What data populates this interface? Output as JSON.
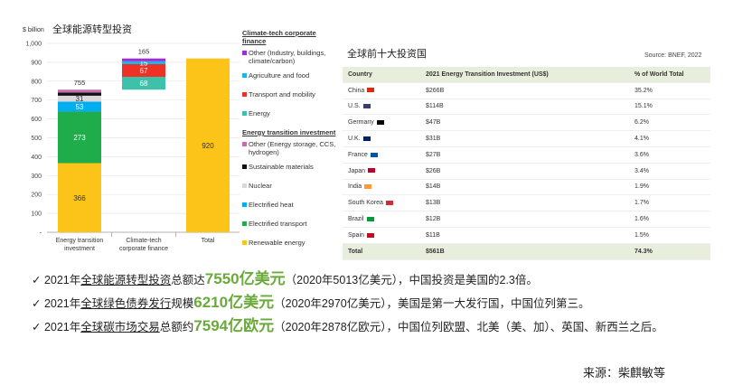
{
  "chart_data": {
    "type": "bar",
    "title": "全球能源转型投资",
    "ylabel": "$ billion",
    "ylim": [
      0,
      1000
    ],
    "yticks": [
      "-",
      "100",
      "200",
      "300",
      "400",
      "500",
      "600",
      "700",
      "800",
      "900",
      "1,000"
    ],
    "categories": [
      "Energy transition investment",
      "Climate-tech corporate finance",
      "Total"
    ],
    "totals": [
      "755",
      "165",
      ""
    ],
    "stacked": [
      {
        "category": "Energy transition investment",
        "base": 0,
        "segments": [
          {
            "name": "Renewable energy",
            "value": 366,
            "color": "#fcc419",
            "label": "366"
          },
          {
            "name": "Electrified transport",
            "value": 273,
            "color": "#1fad4b",
            "label": "273"
          },
          {
            "name": "Electrified heat",
            "value": 53,
            "color": "#00aeef",
            "label": "53"
          },
          {
            "name": "Nuclear",
            "value": 31,
            "color": "#d9d9d9",
            "label": "31"
          },
          {
            "name": "Sustainable materials",
            "value": 17,
            "color": "#111111",
            "label": ""
          },
          {
            "name": "Other (Energy storage, CCS, hydrogen)",
            "value": 15,
            "color": "#c86bb2",
            "label": ""
          }
        ]
      },
      {
        "category": "Climate-tech corporate finance",
        "base": 755,
        "segments": [
          {
            "name": "Energy",
            "value": 68,
            "color": "#3ec1a9",
            "label": "68"
          },
          {
            "name": "Transport and mobility",
            "value": 67,
            "color": "#ee3124",
            "label": "67"
          },
          {
            "name": "Agriculture and food",
            "value": 15,
            "color": "#1cb5ea",
            "label": "15"
          },
          {
            "name": "Other (Industry, buildings, climate/carbon)",
            "value": 15,
            "color": "#9b30d9",
            "label": ""
          }
        ]
      },
      {
        "category": "Total",
        "base": 0,
        "segments": [
          {
            "name": "Total",
            "value": 920,
            "color": "#fcc419",
            "label": "920"
          }
        ]
      }
    ],
    "legend": {
      "groups": [
        {
          "title": "Climate-tech corporate finance",
          "items": [
            {
              "label": "Other (Industry, buildings, climate/carbon)",
              "color": "#9b30d9"
            },
            {
              "label": "Agriculture and food",
              "color": "#1cb5ea"
            },
            {
              "label": "Transport and mobility",
              "color": "#ee3124"
            },
            {
              "label": "Energy",
              "color": "#3ec1a9"
            }
          ]
        },
        {
          "title": "Energy transition investment",
          "items": [
            {
              "label": "Other (Energy storage, CCS, hydrogen)",
              "color": "#c86bb2"
            },
            {
              "label": "Sustainable materials",
              "color": "#111111"
            },
            {
              "label": "Nuclear",
              "color": "#d9d9d9"
            },
            {
              "label": "Electrified heat",
              "color": "#00aeef"
            },
            {
              "label": "Electrified transport",
              "color": "#1fad4b"
            },
            {
              "label": "Renewable energy",
              "color": "#fcc419"
            }
          ]
        }
      ],
      "placement": "right"
    }
  },
  "table": {
    "title": "全球前十大投资国",
    "source": "Source: BNEF, 2022",
    "headers": [
      "Country",
      "2021 Energy Transition Investment (US$)",
      "% of World Total"
    ],
    "rows": [
      {
        "country": "China",
        "investment": "$266B",
        "pct": "35.2%",
        "flag": "#de2910"
      },
      {
        "country": "U.S.",
        "investment": "$114B",
        "pct": "15.1%",
        "flag": "#3c3b6e"
      },
      {
        "country": "Germany",
        "investment": "$47B",
        "pct": "6.2%",
        "flag": "#000000"
      },
      {
        "country": "U.K.",
        "investment": "$31B",
        "pct": "4.1%",
        "flag": "#012169"
      },
      {
        "country": "France",
        "investment": "$27B",
        "pct": "3.6%",
        "flag": "#0055a4"
      },
      {
        "country": "Japan",
        "investment": "$26B",
        "pct": "3.4%",
        "flag": "#bc002d"
      },
      {
        "country": "India",
        "investment": "$14B",
        "pct": "1.9%",
        "flag": "#ff9933"
      },
      {
        "country": "South Korea",
        "investment": "$13B",
        "pct": "1.7%",
        "flag": "#cd2e3a"
      },
      {
        "country": "Brazil",
        "investment": "$12B",
        "pct": "1.6%",
        "flag": "#009c3b"
      },
      {
        "country": "Spain",
        "investment": "$11B",
        "pct": "1.5%",
        "flag": "#c60b1e"
      }
    ],
    "total": {
      "country": "Total",
      "investment": "$561B",
      "pct": "74.3%"
    }
  },
  "bullets": [
    {
      "check": "✓",
      "pre": "2021年",
      "ul": "全球能源转型投资",
      "mid": "总额达",
      "hl": "7550亿美元",
      "post": "（2020年5013亿美元），中国投资是美国的2.3倍。"
    },
    {
      "check": "✓",
      "pre": "2021年",
      "ul": "全球绿色债券发行",
      "mid": "规模",
      "hl": "6210亿美元",
      "post": "（2020年2970亿美元），美国是第一大发行国，中国位列第三。"
    },
    {
      "check": "✓",
      "pre": "2021年",
      "ul": "全球碳市场交易",
      "mid": "总额约",
      "hl": "7594亿欧元",
      "post": "（2020年2878亿欧元），中国位列欧盟、北美（美、加）、英国、新西兰之后。"
    }
  ],
  "source": "来源：柴麒敏等"
}
